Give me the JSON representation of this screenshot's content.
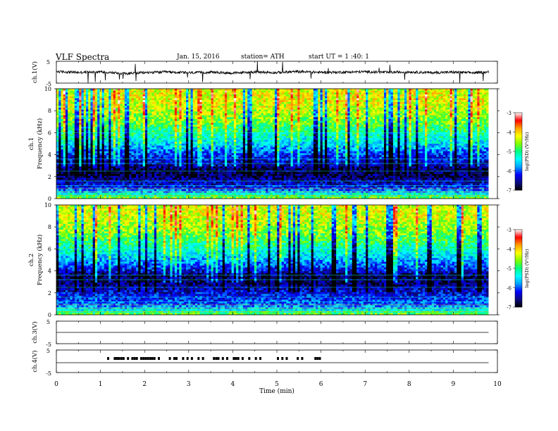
{
  "header": {
    "title": "VLF  Spectra",
    "date": "Jan. 15, 2016",
    "station": "station= ATH",
    "start": "start  UT =   1 :40: 1"
  },
  "colors": {
    "spectrogram_stops": [
      "#000000",
      "#0a0a80",
      "#0000ff",
      "#00a0ff",
      "#00ffff",
      "#00ff80",
      "#80ff00",
      "#ffff00",
      "#ffa000",
      "#ff0000",
      "#ffffff"
    ],
    "trace": "#000000",
    "background": "#ffffff"
  },
  "chart_data": [
    {
      "type": "line",
      "panel": "ch1-waveform",
      "ylabel": "ch.1(V)",
      "ylim": [
        -5,
        5
      ],
      "yticks": [
        "5",
        "-5"
      ],
      "x": [
        0,
        0.5,
        1,
        1.5,
        2,
        2.5,
        3,
        3.5,
        4,
        4.5,
        5,
        5.5,
        6,
        6.5,
        7,
        7.5,
        8,
        8.5,
        9,
        9.5,
        9.8
      ],
      "values": [
        0.3,
        -0.1,
        0.2,
        -0.6,
        -0.2,
        0.1,
        -0.3,
        0.0,
        -0.4,
        0.1,
        -0.2,
        0.3,
        -0.1,
        0.0,
        0.2,
        -0.1,
        0.1,
        -0.2,
        0.0,
        -0.3,
        0.1
      ]
    },
    {
      "type": "heatmap",
      "panel": "ch1-spectrogram",
      "ylabel": "Frequency  (kHz)",
      "channel_label": "ch.1",
      "ylim": [
        0,
        10
      ],
      "yticks": [
        "0",
        "2",
        "4",
        "6",
        "8",
        "10"
      ],
      "colorbar_label": "log(PSD) (V²/Hz)",
      "colorbar_ticks": [
        "-3",
        "-4",
        "-5",
        "-6",
        "-7"
      ],
      "clim": [
        -7,
        -3
      ],
      "profile_freq_khz": [
        0,
        0.5,
        1,
        2,
        2.5,
        3,
        4,
        5,
        6,
        7,
        8,
        9,
        10
      ],
      "profile_logpsd": [
        -4.5,
        -5.5,
        -6.2,
        -6.7,
        -6.8,
        -6.5,
        -6.1,
        -5.5,
        -5.1,
        -4.7,
        -4.4,
        -4.2,
        -4.3
      ]
    },
    {
      "type": "heatmap",
      "panel": "ch2-spectrogram",
      "ylabel": "Frequency  (kHz)",
      "channel_label": "ch.2",
      "ylim": [
        0,
        10
      ],
      "yticks": [
        "0",
        "2",
        "4",
        "6",
        "8",
        "10"
      ],
      "colorbar_label": "log(PSD) (V²/Hz)",
      "colorbar_ticks": [
        "-3",
        "-4",
        "-5",
        "-6",
        "-7"
      ],
      "clim": [
        -7,
        -3
      ],
      "profile_freq_khz": [
        0,
        0.5,
        1,
        2,
        3,
        3.5,
        4,
        5,
        6,
        7,
        8,
        9,
        10
      ],
      "profile_logpsd": [
        -4.6,
        -5.5,
        -6.0,
        -6.3,
        -6.7,
        -6.8,
        -6.3,
        -5.7,
        -5.2,
        -4.8,
        -4.5,
        -4.3,
        -4.3
      ]
    },
    {
      "type": "line",
      "panel": "ch3-waveform",
      "ylabel": "ch.3(V)",
      "ylim": [
        -5,
        5
      ],
      "yticks": [
        "5",
        "-5"
      ],
      "x": [
        0,
        9.8
      ],
      "values": [
        0,
        0
      ]
    },
    {
      "type": "line",
      "panel": "ch4-waveform",
      "ylabel": "ch.4(V)",
      "ylim": [
        -5,
        5
      ],
      "yticks": [
        "5",
        "-5"
      ],
      "x": [
        0,
        9.8
      ],
      "values": [
        0,
        0
      ],
      "pulses_min": [
        1.15,
        1.3,
        1.35,
        1.4,
        1.45,
        1.5,
        1.6,
        1.7,
        1.75,
        1.8,
        1.9,
        1.95,
        2.0,
        2.05,
        2.1,
        2.15,
        2.2,
        2.3,
        2.55,
        2.65,
        2.7,
        2.85,
        2.95,
        3.05,
        3.2,
        3.3,
        3.55,
        3.6,
        3.65,
        3.75,
        3.85,
        4.0,
        4.05,
        4.1,
        4.2,
        4.35,
        4.5,
        4.6,
        5.0,
        5.1,
        5.2,
        5.45,
        5.55,
        5.85,
        5.9,
        5.95
      ]
    }
  ],
  "time_axis": {
    "xlabel": "Time  (min)",
    "xlim": [
      0,
      10
    ],
    "ticks": [
      "0",
      "1",
      "2",
      "3",
      "4",
      "5",
      "6",
      "7",
      "8",
      "9",
      "10"
    ]
  }
}
